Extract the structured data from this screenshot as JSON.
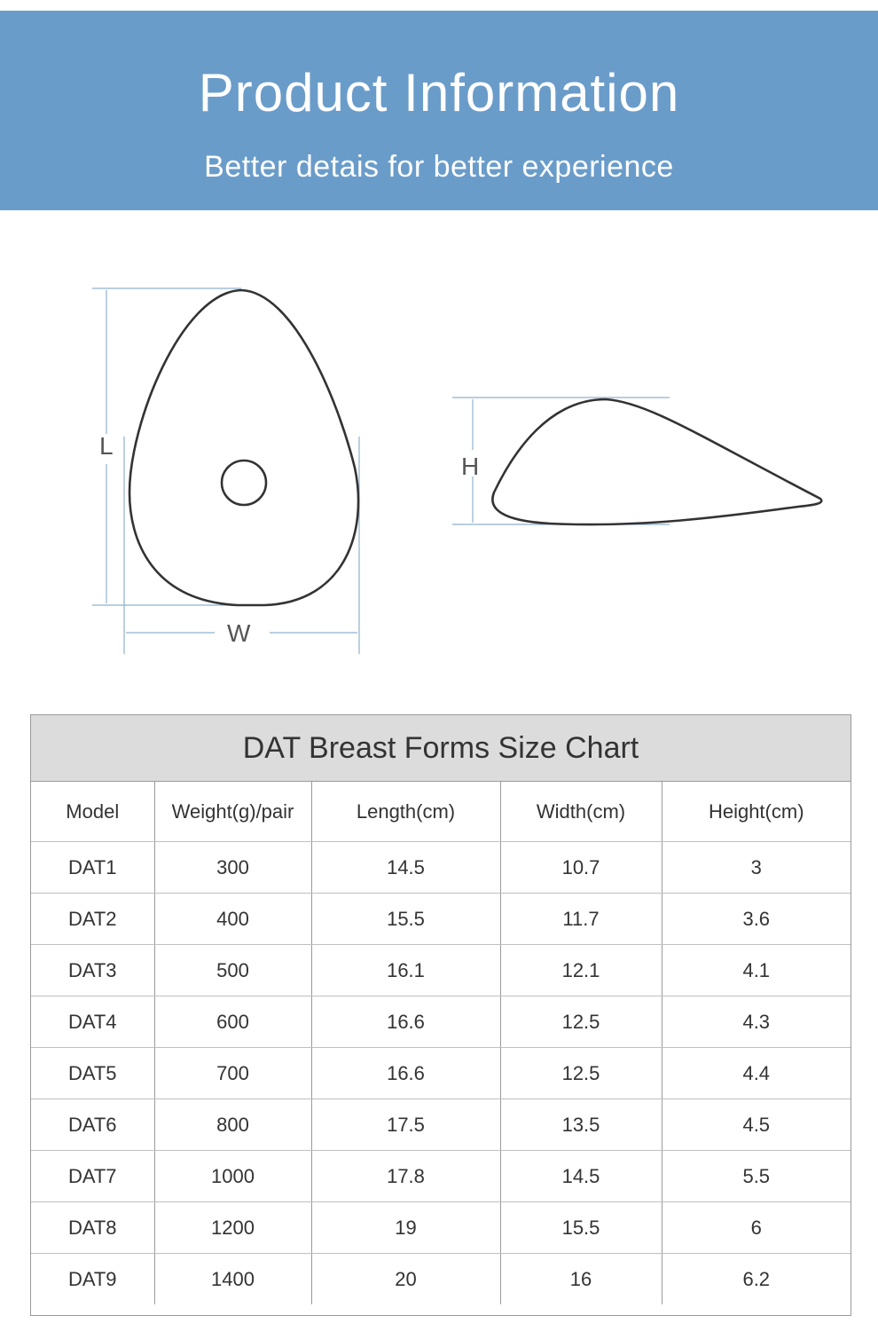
{
  "header": {
    "title": "Product Information",
    "subtitle": "Better detais for better experience"
  },
  "diagram": {
    "length_label": "L",
    "width_label": "W",
    "height_label": "H"
  },
  "size_chart": {
    "title": "DAT Breast Forms Size Chart",
    "columns": [
      "Model",
      "Weight(g)/pair",
      "Length(cm)",
      "Width(cm)",
      "Height(cm)"
    ],
    "rows": [
      [
        "DAT1",
        "300",
        "14.5",
        "10.7",
        "3"
      ],
      [
        "DAT2",
        "400",
        "15.5",
        "11.7",
        "3.6"
      ],
      [
        "DAT3",
        "500",
        "16.1",
        "12.1",
        "4.1"
      ],
      [
        "DAT4",
        "600",
        "16.6",
        "12.5",
        "4.3"
      ],
      [
        "DAT5",
        "700",
        "16.6",
        "12.5",
        "4.4"
      ],
      [
        "DAT6",
        "800",
        "17.5",
        "13.5",
        "4.5"
      ],
      [
        "DAT7",
        "1000",
        "17.8",
        "14.5",
        "5.5"
      ],
      [
        "DAT8",
        "1200",
        "19",
        "15.5",
        "6"
      ],
      [
        "DAT9",
        "1400",
        "20",
        "16",
        "6.2"
      ]
    ]
  }
}
